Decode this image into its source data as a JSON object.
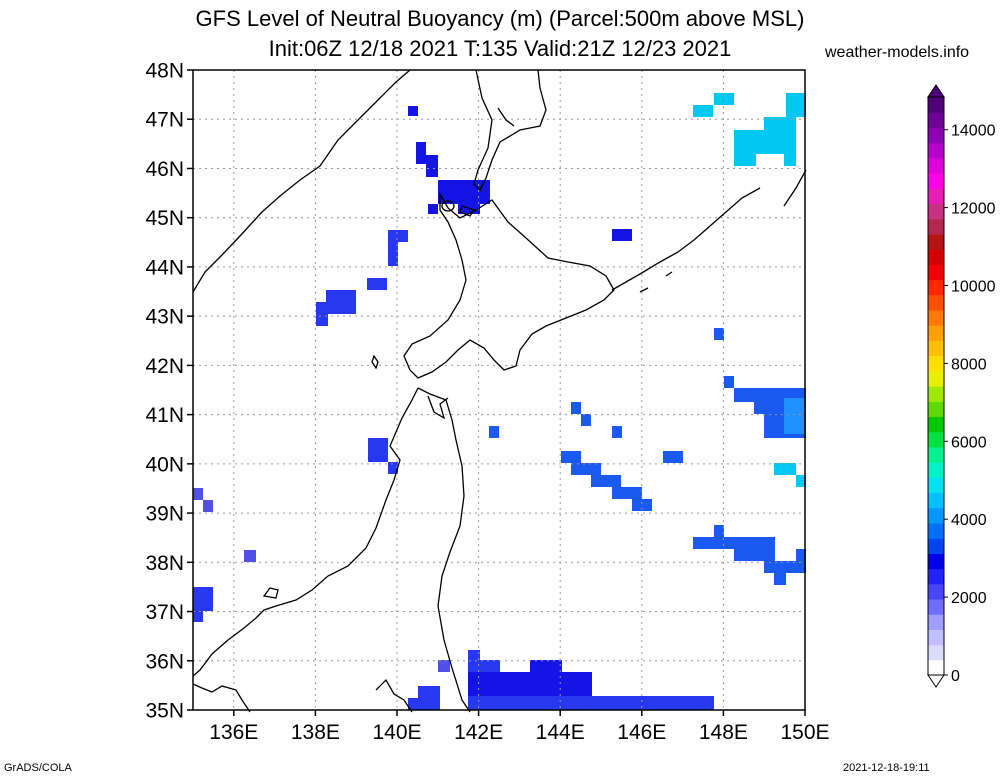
{
  "header": {
    "title_line1": "GFS Level of Neutral Buoyancy (m) (Parcel:500m above MSL)",
    "title_line2": "Init:06Z 12/18 2021 T:135 Valid:21Z 12/23 2021",
    "site": "weather-models.info"
  },
  "footer": {
    "credit": "GrADS/COLA",
    "timestamp": "2021-12-18-19:11"
  },
  "map": {
    "lat_labels": [
      "35N",
      "36N",
      "37N",
      "38N",
      "39N",
      "40N",
      "41N",
      "42N",
      "43N",
      "44N",
      "45N",
      "46N",
      "47N",
      "48N"
    ],
    "lon_labels": [
      "136E",
      "138E",
      "140E",
      "142E",
      "144E",
      "146E",
      "148E",
      "150E"
    ],
    "lat_range": [
      35,
      48
    ],
    "lon_range": [
      135,
      150
    ]
  },
  "colorbar": {
    "labels": [
      "0",
      "2000",
      "4000",
      "6000",
      "8000",
      "10000",
      "12000",
      "14000"
    ],
    "colors": [
      "#ffffff",
      "#dcdcff",
      "#c0c0ff",
      "#9e9eff",
      "#6e6eff",
      "#4646ff",
      "#2222ff",
      "#0000e6",
      "#0046f0",
      "#0070ff",
      "#0096ff",
      "#00c0ff",
      "#00e0f0",
      "#00f0c8",
      "#00f090",
      "#00e040",
      "#00c800",
      "#60d800",
      "#a0e800",
      "#e6f000",
      "#ffe000",
      "#ffc000",
      "#ffa000",
      "#ff7800",
      "#ff5000",
      "#ff2800",
      "#f00000",
      "#d20000",
      "#b41414",
      "#b42850",
      "#c83280",
      "#e61eb4",
      "#ff00e6",
      "#dc00dc",
      "#b400c8",
      "#8c00b4",
      "#6e0096",
      "#500078"
    ]
  },
  "colors": {
    "deep_blue": "#1414e6",
    "mid_blue": "#2838f0",
    "blue": "#1a5af0",
    "light_blue": "#1e90ff",
    "cyan": "#00c8f5",
    "violet": "#5050e6"
  }
}
